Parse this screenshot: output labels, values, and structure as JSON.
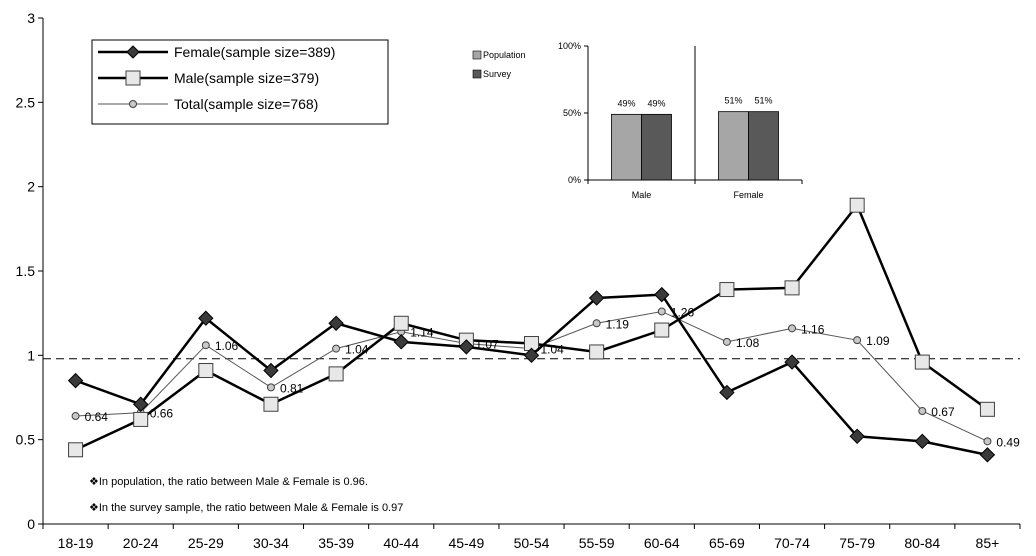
{
  "chart_data": [
    {
      "type": "line",
      "categories": [
        "18-19",
        "20-24",
        "25-29",
        "30-34",
        "35-39",
        "40-44",
        "45-49",
        "50-54",
        "55-59",
        "60-64",
        "65-69",
        "70-74",
        "75-79",
        "80-84",
        "85+"
      ],
      "ylim": [
        0,
        3
      ],
      "yticks": [
        "0",
        "0.5",
        "1",
        "1.5",
        "2",
        "2.5",
        "3"
      ],
      "reference_line": 0.98,
      "series": [
        {
          "name": "Female(sample size=389)",
          "marker": "diamond",
          "color": "#404040",
          "values": [
            0.85,
            0.71,
            1.22,
            0.91,
            1.19,
            1.08,
            1.05,
            1.0,
            1.34,
            1.36,
            0.78,
            0.96,
            0.52,
            0.49,
            0.41
          ]
        },
        {
          "name": "Male(sample size=379)",
          "marker": "square",
          "color": "#404040",
          "values": [
            0.44,
            0.62,
            0.91,
            0.71,
            0.89,
            1.19,
            1.09,
            1.07,
            1.02,
            1.15,
            1.39,
            1.4,
            1.89,
            0.96,
            0.68
          ]
        },
        {
          "name": "Total(sample size=768)",
          "marker": "circle",
          "color": "#808080",
          "values": [
            0.64,
            0.66,
            1.06,
            0.81,
            1.04,
            1.14,
            1.07,
            1.04,
            1.19,
            1.26,
            1.08,
            1.16,
            1.09,
            0.67,
            0.49
          ]
        }
      ],
      "data_labels": [
        "0.64",
        "0.66",
        "1.06",
        "0.81",
        "1.04",
        "1.14",
        "1.07",
        "1.04",
        "1.19",
        "1.26",
        "1.08",
        "1.16",
        "1.09",
        "0.67",
        "0.49"
      ],
      "annotations": [
        "❖In population, the ratio between Male & Female is 0.96.",
        "❖In the survey sample, the ratio between Male & Female is 0.97"
      ],
      "legend_position": "top-left"
    },
    {
      "type": "bar",
      "categories": [
        "Male",
        "Female"
      ],
      "ylim": [
        0,
        100
      ],
      "yticks": [
        "0%",
        "50%",
        "100%"
      ],
      "series": [
        {
          "name": "Population",
          "color": "#a6a6a6",
          "values": [
            49,
            51
          ],
          "labels": [
            "49%",
            "51%"
          ]
        },
        {
          "name": "Survey",
          "color": "#595959",
          "values": [
            49,
            51
          ],
          "labels": [
            "49%",
            "51%"
          ]
        }
      ],
      "legend_position": "top-left"
    }
  ]
}
